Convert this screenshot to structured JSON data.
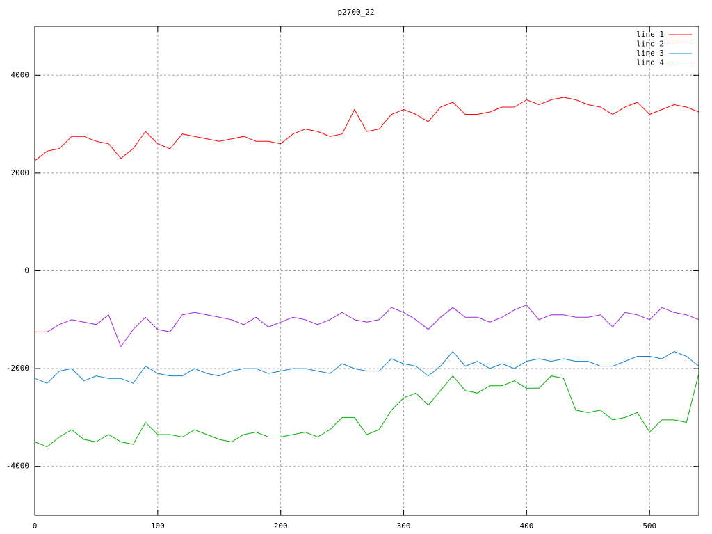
{
  "chart_data": {
    "type": "line",
    "title": "p2700_22",
    "x": [
      0,
      10,
      20,
      30,
      40,
      50,
      60,
      70,
      80,
      90,
      100,
      110,
      120,
      130,
      140,
      150,
      160,
      170,
      180,
      190,
      200,
      210,
      220,
      230,
      240,
      250,
      260,
      270,
      280,
      290,
      300,
      310,
      320,
      330,
      340,
      350,
      360,
      370,
      380,
      390,
      400,
      410,
      420,
      430,
      440,
      450,
      460,
      470,
      480,
      490,
      500,
      510,
      520,
      530,
      540
    ],
    "series": [
      {
        "name": "line 1",
        "color": "#ff0000",
        "values": [
          2250,
          2450,
          2500,
          2750,
          2750,
          2650,
          2600,
          2300,
          2500,
          2850,
          2600,
          2500,
          2800,
          2750,
          2700,
          2650,
          2700,
          2750,
          2650,
          2650,
          2600,
          2800,
          2900,
          2850,
          2750,
          2800,
          3300,
          2850,
          2900,
          3200,
          3300,
          3200,
          3050,
          3350,
          3450,
          3200,
          3200,
          3250,
          3350,
          3350,
          3500,
          3400,
          3500,
          3550,
          3500,
          3400,
          3350,
          3200,
          3350,
          3450,
          3200,
          3300,
          3400,
          3350,
          3250
        ]
      },
      {
        "name": "line 2",
        "color": "#00b000",
        "values": [
          -3500,
          -3600,
          -3400,
          -3250,
          -3450,
          -3500,
          -3350,
          -3500,
          -3550,
          -3100,
          -3350,
          -3350,
          -3400,
          -3250,
          -3350,
          -3450,
          -3500,
          -3350,
          -3300,
          -3400,
          -3400,
          -3350,
          -3300,
          -3400,
          -3250,
          -3000,
          -3000,
          -3350,
          -3250,
          -2850,
          -2600,
          -2500,
          -2750,
          -2450,
          -2150,
          -2450,
          -2500,
          -2350,
          -2350,
          -2250,
          -2400,
          -2400,
          -2150,
          -2200,
          -2850,
          -2900,
          -2850,
          -3050,
          -3000,
          -2900,
          -3300,
          -3050,
          -3050,
          -3100,
          -2100
        ]
      },
      {
        "name": "line 3",
        "color": "#1080d0",
        "values": [
          -2200,
          -2300,
          -2050,
          -2000,
          -2250,
          -2150,
          -2200,
          -2200,
          -2300,
          -1950,
          -2100,
          -2150,
          -2150,
          -2000,
          -2100,
          -2150,
          -2050,
          -2000,
          -2000,
          -2100,
          -2050,
          -2000,
          -2000,
          -2050,
          -2100,
          -1900,
          -2000,
          -2050,
          -2050,
          -1800,
          -1900,
          -1950,
          -2150,
          -1950,
          -1650,
          -1950,
          -1850,
          -2000,
          -1900,
          -2000,
          -1850,
          -1800,
          -1850,
          -1800,
          -1850,
          -1850,
          -1950,
          -1950,
          -1850,
          -1750,
          -1750,
          -1800,
          -1650,
          -1750,
          -1950
        ]
      },
      {
        "name": "line 4",
        "color": "#a020e0",
        "values": [
          -1250,
          -1250,
          -1100,
          -1000,
          -1050,
          -1100,
          -900,
          -1550,
          -1200,
          -950,
          -1200,
          -1250,
          -900,
          -850,
          -900,
          -950,
          -1000,
          -1100,
          -950,
          -1150,
          -1050,
          -950,
          -1000,
          -1100,
          -1000,
          -850,
          -1000,
          -1050,
          -1000,
          -750,
          -850,
          -1000,
          -1200,
          -950,
          -750,
          -950,
          -950,
          -1050,
          -950,
          -800,
          -700,
          -1000,
          -900,
          -900,
          -950,
          -950,
          -900,
          -1150,
          -850,
          -900,
          -1000,
          -750,
          -850,
          -900,
          -1000
        ]
      }
    ],
    "xlim": [
      0,
      540
    ],
    "ylim": [
      -5000,
      5000
    ],
    "xticks": [
      0,
      100,
      200,
      300,
      400,
      500
    ],
    "yticks": [
      -4000,
      -2000,
      0,
      2000,
      4000
    ],
    "grid": true,
    "legend": "top-right"
  }
}
